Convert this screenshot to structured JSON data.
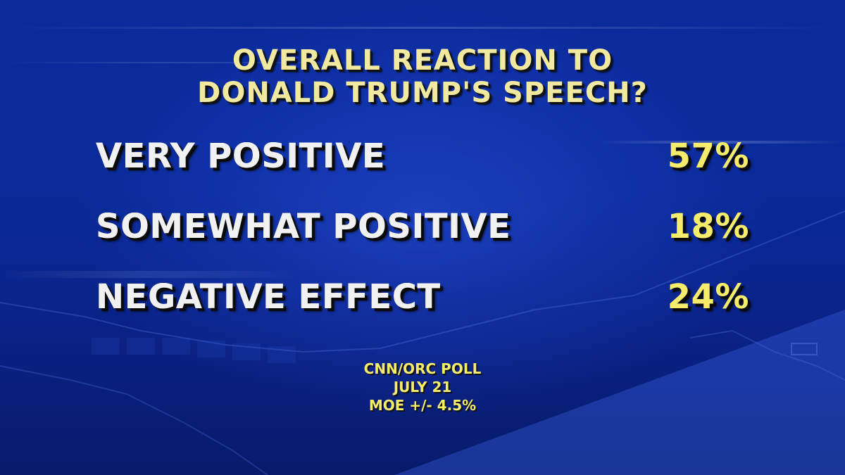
{
  "chart_data": {
    "type": "table",
    "title": "OVERALL REACTION TO DONALD TRUMP'S SPEECH?",
    "title_lines": [
      "OVERALL REACTION TO",
      "DONALD TRUMP'S SPEECH?"
    ],
    "categories": [
      "VERY POSITIVE",
      "SOMEWHAT POSITIVE",
      "NEGATIVE EFFECT"
    ],
    "values": [
      57,
      18,
      24
    ],
    "value_labels": [
      "57%",
      "18%",
      "24%"
    ],
    "source_lines": [
      "CNN/ORC POLL",
      "JULY 21",
      "MOE +/- 4.5%"
    ]
  },
  "colors": {
    "title": "#f2e9a0",
    "label": "#f1f1f1",
    "value": "#f4ec6a",
    "background": "#0a2a99"
  }
}
